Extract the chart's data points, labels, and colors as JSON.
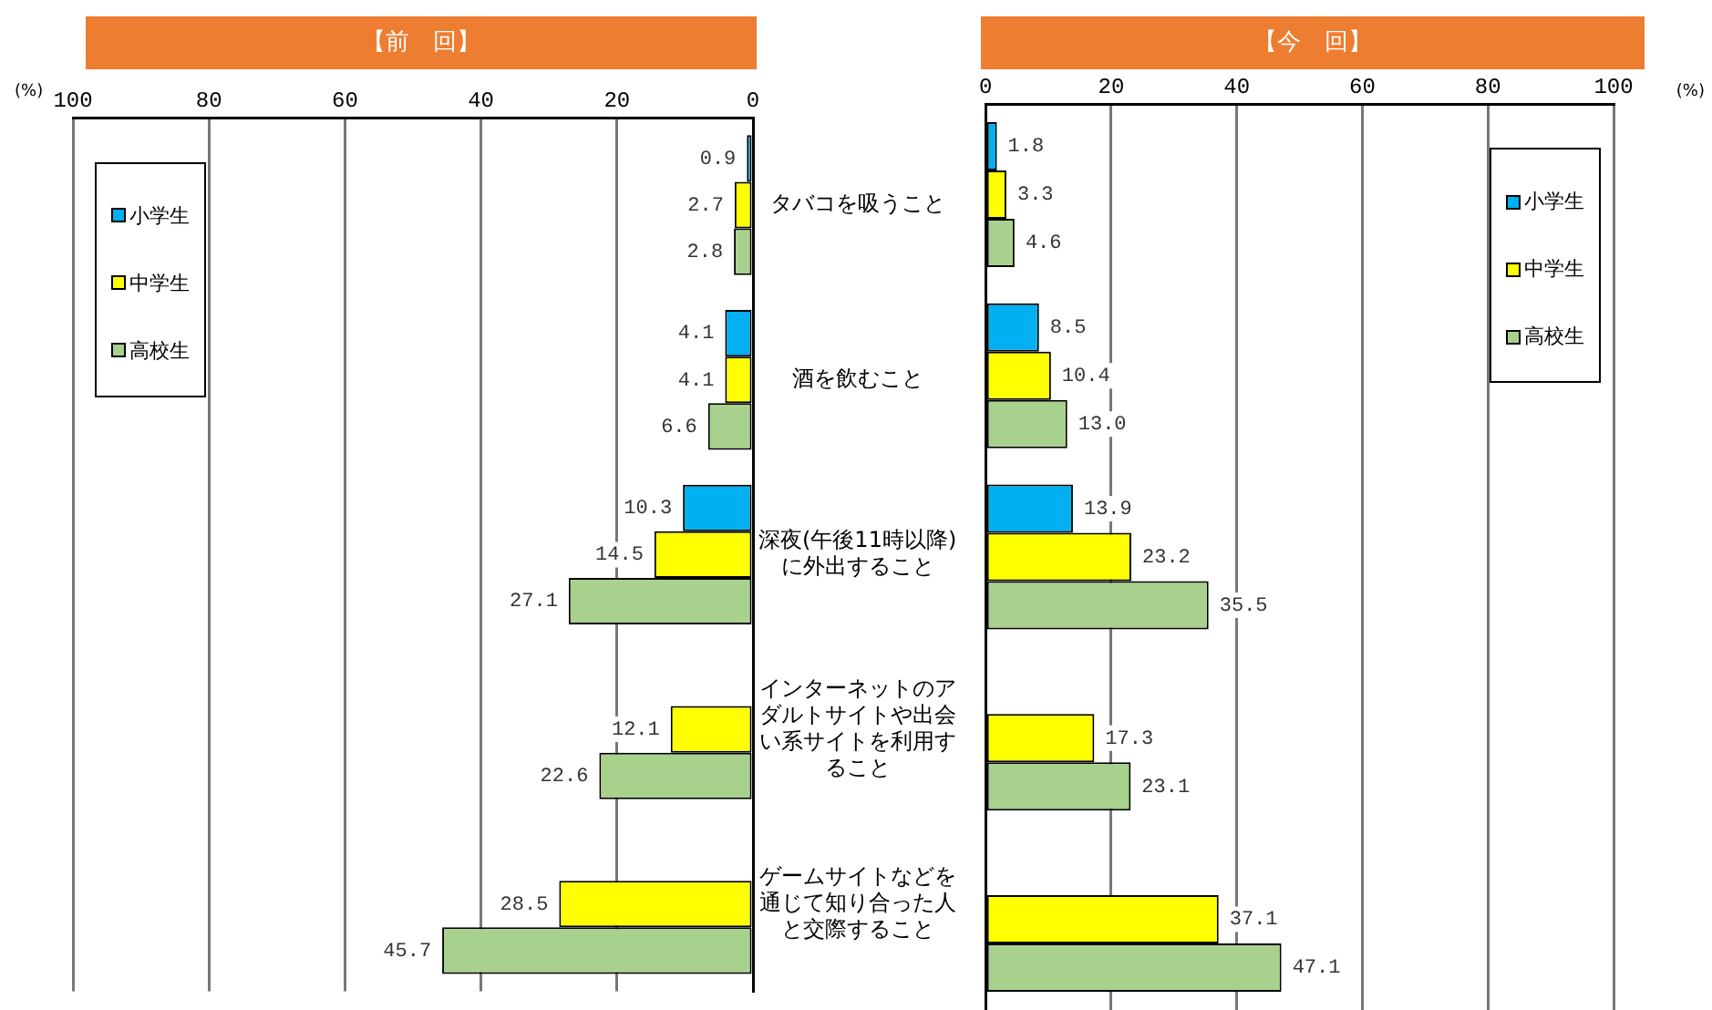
{
  "chart_data": [
    {
      "type": "bar",
      "orientation": "horizontal",
      "title": "【前　回】",
      "xlabel": "(%)",
      "categories": [
        "タバコを吸うこと",
        "酒を飲むこと",
        "深夜(午後11時以降)に外出すること",
        "インターネットのアダルトサイトや出会い系サイトを利用すること",
        "ゲームサイトなどを通じて知り合った人と交際すること"
      ],
      "series": [
        {
          "name": "小学生",
          "color": "#00b0f0",
          "values": [
            0.9,
            4.1,
            10.3,
            null,
            null
          ],
          "value_labels": [
            "0.9",
            "4.1",
            "10.3",
            null,
            null
          ]
        },
        {
          "name": "中学生",
          "color": "#ffff00",
          "values": [
            2.7,
            4.1,
            14.5,
            12.1,
            28.5
          ],
          "value_labels": [
            "2.7",
            "4.1",
            "14.5",
            "12.1",
            "28.5"
          ]
        },
        {
          "name": "高校生",
          "color": "#a9d18e",
          "values": [
            2.8,
            6.6,
            27.1,
            22.6,
            45.7
          ],
          "value_labels": [
            "2.8",
            "6.6",
            "27.1",
            "22.6",
            "45.7"
          ]
        }
      ],
      "xlim": [
        100,
        0
      ],
      "xticks": [
        100,
        80,
        60,
        40,
        20,
        0
      ],
      "grid": "x",
      "legend": "top left"
    },
    {
      "type": "bar",
      "orientation": "horizontal",
      "title": "【今　回】",
      "xlabel": "(%)",
      "categories": [
        null,
        null,
        null,
        null,
        null
      ],
      "series": [
        {
          "name": "小学生",
          "color": "#00b0f0",
          "values": [
            1.8,
            8.5,
            13.9,
            null,
            null
          ],
          "value_labels": [
            "1.8",
            "8.5",
            "13.9",
            null,
            null
          ]
        },
        {
          "name": "中学生",
          "color": "#ffff00",
          "values": [
            3.3,
            10.4,
            23.2,
            17.3,
            37.1
          ],
          "value_labels": [
            "3.3",
            "10.4",
            "23.2",
            "17.3",
            "37.1"
          ]
        },
        {
          "name": "高校生",
          "color": "#a9d18e",
          "values": [
            4.6,
            13.0,
            35.5,
            23.1,
            47.1
          ],
          "value_labels": [
            "4.6",
            "13.0",
            "35.5",
            "23.1",
            "47.1"
          ]
        }
      ],
      "xlim": [
        0,
        100
      ],
      "xticks": [
        0,
        20,
        40,
        60,
        80,
        100
      ],
      "grid": "x",
      "legend": "top right",
      "tick_labels": "x"
    }
  ]
}
